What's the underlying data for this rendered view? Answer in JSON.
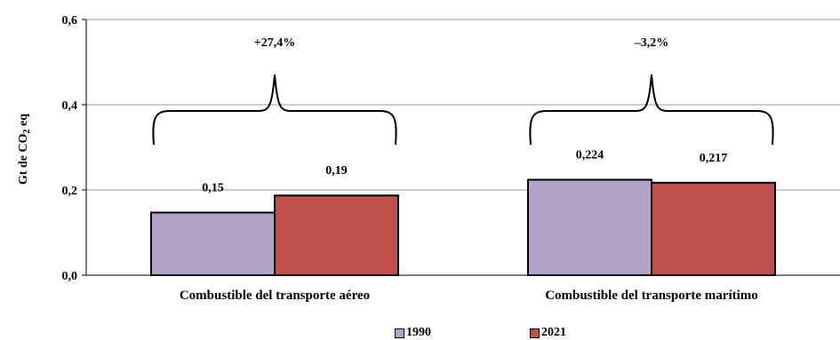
{
  "chart_data": {
    "type": "bar",
    "ylabel": "Gt de CO₂ eq",
    "ylim": [
      0,
      0.6
    ],
    "yticks": [
      {
        "value": 0.0,
        "label": "0,0"
      },
      {
        "value": 0.2,
        "label": "0,2"
      },
      {
        "value": 0.4,
        "label": "0,4"
      },
      {
        "value": 0.6,
        "label": "0,6"
      }
    ],
    "categories": [
      "Combustible del transporte aéreo",
      "Combustible del transporte marítimo"
    ],
    "series": [
      {
        "name": "1990",
        "color": "#b3a2c7",
        "values": [
          0.147,
          0.224
        ],
        "labels": [
          "0,15",
          "0,224"
        ]
      },
      {
        "name": "2021",
        "color": "#c0504d",
        "values": [
          0.187,
          0.217
        ],
        "labels": [
          "0,19",
          "0,217"
        ]
      }
    ],
    "annotations": [
      "+27,4%",
      "–3,2%"
    ],
    "legend_position": "bottom",
    "grid": true
  }
}
